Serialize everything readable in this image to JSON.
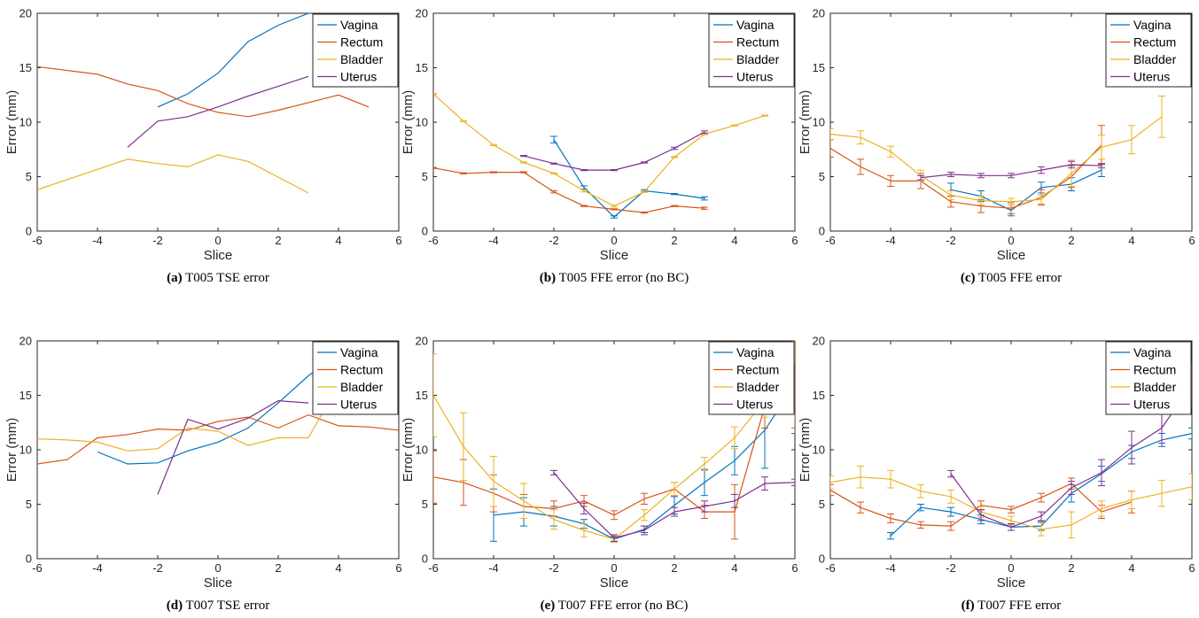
{
  "colors": {
    "Vagina": "#0072bd",
    "Rectum": "#d95319",
    "Bladder": "#edb120",
    "Uterus": "#7e2f8e"
  },
  "chart_data": [
    {
      "type": "line",
      "caption_label": "(a)",
      "caption_text": "T005 TSE error",
      "xlabel": "Slice",
      "ylabel": "Error (mm)",
      "xlim": [
        -6,
        6
      ],
      "ylim": [
        0,
        20
      ],
      "xticks": [
        -6,
        -4,
        -2,
        0,
        2,
        4,
        6
      ],
      "yticks": [
        0,
        5,
        10,
        15,
        20
      ],
      "legend_position": "top-right",
      "error_bars": false,
      "series": [
        {
          "name": "Vagina",
          "x": [
            -2,
            -1,
            0,
            1,
            2,
            3
          ],
          "y": [
            11.4,
            12.6,
            14.5,
            17.4,
            18.9,
            20.0
          ]
        },
        {
          "name": "Rectum",
          "x": [
            -6,
            -4,
            -3,
            -2,
            -1,
            0,
            1,
            2,
            3,
            4,
            5
          ],
          "y": [
            15.1,
            14.4,
            13.5,
            12.9,
            11.7,
            10.9,
            10.5,
            11.1,
            11.8,
            12.5,
            11.4
          ]
        },
        {
          "name": "Bladder",
          "x": [
            -6,
            -3,
            -2,
            -1,
            0,
            1,
            3
          ],
          "y": [
            3.8,
            6.6,
            6.2,
            5.9,
            7.0,
            6.4,
            3.5
          ]
        },
        {
          "name": "Uterus",
          "x": [
            -3,
            -2,
            -1,
            0,
            1,
            2,
            3
          ],
          "y": [
            7.7,
            10.1,
            10.5,
            11.4,
            12.4,
            13.3,
            14.2
          ]
        }
      ]
    },
    {
      "type": "line",
      "caption_label": "(b)",
      "caption_text": "T005 FFE error (no BC)",
      "xlabel": "Slice",
      "ylabel": "Error (mm)",
      "xlim": [
        -6,
        6
      ],
      "ylim": [
        0,
        20
      ],
      "xticks": [
        -6,
        -4,
        -2,
        0,
        2,
        4,
        6
      ],
      "yticks": [
        0,
        5,
        10,
        15,
        20
      ],
      "legend_position": "top-right",
      "error_bars": true,
      "series": [
        {
          "name": "Vagina",
          "x": [
            -2,
            -1,
            0,
            1,
            2,
            3
          ],
          "y": [
            8.4,
            4.0,
            1.3,
            3.7,
            3.4,
            3.0
          ],
          "err": [
            0.3,
            0.15,
            0.1,
            0.1,
            0.05,
            0.15
          ]
        },
        {
          "name": "Rectum",
          "x": [
            -6,
            -5,
            -4,
            -3,
            -2,
            -1,
            0,
            1,
            2,
            3
          ],
          "y": [
            5.8,
            5.3,
            5.4,
            5.4,
            3.6,
            2.3,
            2.0,
            1.7,
            2.3,
            2.1
          ],
          "err": [
            0.05,
            0.05,
            0.05,
            0.05,
            0.1,
            0.05,
            0.05,
            0.05,
            0.05,
            0.1
          ]
        },
        {
          "name": "Bladder",
          "x": [
            -6,
            -5,
            -4,
            -3,
            -2,
            -1,
            0,
            1,
            2,
            3,
            4,
            5
          ],
          "y": [
            12.6,
            10.1,
            7.9,
            6.3,
            5.3,
            3.7,
            2.3,
            3.6,
            6.8,
            8.9,
            9.7,
            10.6
          ],
          "err": [
            0.05,
            0.05,
            0.05,
            0.05,
            0.05,
            0.1,
            0.1,
            0.05,
            0.05,
            0.05,
            0.05,
            0.05
          ]
        },
        {
          "name": "Uterus",
          "x": [
            -3,
            -2,
            -1,
            0,
            1,
            2,
            3
          ],
          "y": [
            6.9,
            6.2,
            5.6,
            5.6,
            6.3,
            7.6,
            9.1
          ],
          "err": [
            0.05,
            0.05,
            0.05,
            0.05,
            0.05,
            0.1,
            0.1
          ]
        }
      ]
    },
    {
      "type": "line",
      "caption_label": "(c)",
      "caption_text": "T005 FFE error",
      "xlabel": "Slice",
      "ylabel": "Error (mm)",
      "xlim": [
        -6,
        6
      ],
      "ylim": [
        0,
        20
      ],
      "xticks": [
        -6,
        -4,
        -2,
        0,
        2,
        4,
        6
      ],
      "yticks": [
        0,
        5,
        10,
        15,
        20
      ],
      "legend_position": "top-right",
      "error_bars": true,
      "series": [
        {
          "name": "Vagina",
          "x": [
            -2,
            -1,
            0,
            1,
            2,
            3
          ],
          "y": [
            3.8,
            3.2,
            1.9,
            4.0,
            4.3,
            5.6
          ],
          "err": [
            0.6,
            0.5,
            0.5,
            0.5,
            0.6,
            0.6
          ]
        },
        {
          "name": "Rectum",
          "x": [
            -6,
            -5,
            -4,
            -3,
            -2,
            -1,
            0,
            1,
            2,
            3
          ],
          "y": [
            7.6,
            5.9,
            4.6,
            4.6,
            2.7,
            2.3,
            2.1,
            3.1,
            5.0,
            7.9
          ],
          "err": [
            0.8,
            0.7,
            0.5,
            0.7,
            0.5,
            0.6,
            0.5,
            0.7,
            1.0,
            1.8
          ]
        },
        {
          "name": "Bladder",
          "x": [
            -6,
            -5,
            -4,
            -3,
            -2,
            -1,
            0,
            1,
            2,
            3,
            4,
            5
          ],
          "y": [
            8.9,
            8.6,
            7.3,
            5.1,
            3.3,
            2.8,
            2.7,
            2.9,
            5.3,
            7.7,
            8.4,
            10.5
          ],
          "err": [
            0.5,
            0.6,
            0.5,
            0.5,
            0.4,
            0.4,
            0.3,
            0.4,
            1.2,
            1.1,
            1.3,
            1.9
          ]
        },
        {
          "name": "Uterus",
          "x": [
            -3,
            -2,
            -1,
            0,
            1,
            2,
            3
          ],
          "y": [
            4.9,
            5.2,
            5.1,
            5.1,
            5.6,
            6.1,
            6.0
          ],
          "err": [
            0.2,
            0.2,
            0.2,
            0.2,
            0.3,
            0.3,
            0.2
          ]
        }
      ]
    },
    {
      "type": "line",
      "caption_label": "(d)",
      "caption_text": "T007 TSE error",
      "xlabel": "Slice",
      "ylabel": "Error (mm)",
      "xlim": [
        -6,
        6
      ],
      "ylim": [
        0,
        20
      ],
      "xticks": [
        -6,
        -4,
        -2,
        0,
        2,
        4,
        6
      ],
      "yticks": [
        0,
        5,
        10,
        15,
        20
      ],
      "legend_position": "top-right",
      "error_bars": false,
      "series": [
        {
          "name": "Vagina",
          "x": [
            -4,
            -3,
            -2,
            -1,
            0,
            1,
            2,
            3,
            4,
            5
          ],
          "y": [
            9.8,
            8.7,
            8.8,
            9.9,
            10.7,
            12.0,
            14.3,
            16.8,
            18.8,
            20.0
          ]
        },
        {
          "name": "Rectum",
          "x": [
            -6,
            -5,
            -4,
            -3,
            -2,
            -1,
            0,
            1,
            2,
            3,
            4,
            5,
            6
          ],
          "y": [
            8.7,
            9.1,
            11.1,
            11.4,
            11.9,
            11.8,
            12.6,
            13.0,
            12.0,
            13.2,
            12.2,
            12.1,
            11.8
          ]
        },
        {
          "name": "Bladder",
          "x": [
            -6,
            -5,
            -4,
            -3,
            -2,
            -1,
            0,
            1,
            2,
            3,
            4
          ],
          "y": [
            11.0,
            10.9,
            10.7,
            9.9,
            10.1,
            12.0,
            11.7,
            10.4,
            11.1,
            11.1,
            16.0
          ]
        },
        {
          "name": "Uterus",
          "x": [
            -2,
            -1,
            0,
            1,
            2,
            3
          ],
          "y": [
            5.9,
            12.8,
            11.9,
            12.9,
            14.5,
            14.3
          ]
        }
      ]
    },
    {
      "type": "line",
      "caption_label": "(e)",
      "caption_text": "T007 FFE error (no BC)",
      "xlabel": "Slice",
      "ylabel": "Error (mm)",
      "xlim": [
        -6,
        6
      ],
      "ylim": [
        0,
        20
      ],
      "xticks": [
        -6,
        -4,
        -2,
        0,
        2,
        4,
        6
      ],
      "yticks": [
        0,
        5,
        10,
        15,
        20
      ],
      "legend_position": "top-right",
      "error_bars": true,
      "series": [
        {
          "name": "Vagina",
          "x": [
            -4,
            -3,
            -2,
            -1,
            0,
            1,
            2,
            3,
            4,
            5,
            6
          ],
          "y": [
            4.0,
            4.3,
            3.9,
            3.2,
            1.8,
            2.7,
            4.9,
            7.0,
            9.0,
            11.8,
            16.0
          ],
          "err": [
            2.4,
            1.3,
            0.9,
            0.4,
            0.2,
            0.3,
            0.8,
            1.2,
            1.3,
            3.5,
            4.5
          ]
        },
        {
          "name": "Rectum",
          "x": [
            -6,
            -5,
            -4,
            -3,
            -2,
            -1,
            0,
            1,
            2,
            3,
            4,
            5,
            6
          ],
          "y": [
            7.5,
            7.0,
            6.0,
            4.8,
            4.6,
            5.3,
            4.0,
            5.5,
            6.4,
            4.3,
            4.3,
            14.0,
            16.0
          ],
          "err": [
            2.4,
            2.1,
            1.7,
            1.1,
            0.7,
            0.5,
            0.4,
            0.5,
            0.6,
            0.6,
            2.5,
            2.0,
            4.0
          ]
        },
        {
          "name": "Bladder",
          "x": [
            -6,
            -5,
            -4,
            -3,
            -2,
            -1,
            0,
            1,
            2,
            3,
            4,
            5,
            6
          ],
          "y": [
            15.0,
            10.3,
            7.1,
            5.3,
            3.6,
            2.6,
            1.8,
            4.0,
            6.4,
            8.7,
            11.1,
            14.5,
            20.0
          ],
          "err": [
            3.8,
            3.1,
            2.3,
            1.6,
            0.9,
            0.6,
            0.3,
            0.5,
            0.6,
            0.6,
            1.0,
            1.5,
            2.0
          ]
        },
        {
          "name": "Uterus",
          "x": [
            -2,
            -1,
            0,
            1,
            2,
            3,
            4,
            5,
            6
          ],
          "y": [
            7.9,
            4.6,
            1.9,
            2.6,
            4.3,
            4.8,
            5.3,
            6.9,
            7.0
          ],
          "err": [
            0.2,
            0.5,
            0.3,
            0.4,
            0.4,
            0.5,
            0.6,
            0.6,
            0.3
          ]
        }
      ]
    },
    {
      "type": "line",
      "caption_label": "(f)",
      "caption_text": "T007 FFE error",
      "xlabel": "Slice",
      "ylabel": "Error (mm)",
      "xlim": [
        -6,
        6
      ],
      "ylim": [
        0,
        20
      ],
      "xticks": [
        -6,
        -4,
        -2,
        0,
        2,
        4,
        6
      ],
      "yticks": [
        0,
        5,
        10,
        15,
        20
      ],
      "legend_position": "top-right",
      "error_bars": true,
      "series": [
        {
          "name": "Vagina",
          "x": [
            -4,
            -3,
            -2,
            -1,
            0,
            1,
            2,
            3,
            4,
            5,
            6
          ],
          "y": [
            2.1,
            4.7,
            4.3,
            3.6,
            2.9,
            3.0,
            6.0,
            7.8,
            9.8,
            10.9,
            11.5
          ],
          "err": [
            0.3,
            0.3,
            0.4,
            0.4,
            0.3,
            0.4,
            0.8,
            0.7,
            0.6,
            0.6,
            0.5
          ]
        },
        {
          "name": "Rectum",
          "x": [
            -6,
            -5,
            -4,
            -3,
            -2,
            -1,
            0,
            1,
            2,
            3,
            4
          ],
          "y": [
            6.3,
            4.7,
            3.7,
            3.1,
            3.0,
            4.9,
            4.5,
            5.6,
            6.9,
            4.3,
            5.2
          ],
          "err": [
            0.5,
            0.5,
            0.4,
            0.3,
            0.4,
            0.4,
            0.3,
            0.4,
            0.5,
            0.6,
            1.0
          ]
        },
        {
          "name": "Bladder",
          "x": [
            -6,
            -5,
            -4,
            -3,
            -2,
            -1,
            0,
            1,
            2,
            3,
            4,
            5,
            6
          ],
          "y": [
            7.0,
            7.5,
            7.3,
            6.2,
            5.7,
            4.3,
            3.5,
            2.7,
            3.1,
            4.6,
            5.4,
            6.0,
            6.6
          ],
          "err": [
            0.6,
            1.0,
            0.8,
            0.6,
            0.6,
            0.5,
            0.4,
            0.6,
            1.2,
            0.7,
            0.8,
            1.2,
            1.2
          ]
        },
        {
          "name": "Uterus",
          "x": [
            -2,
            -1,
            0,
            1,
            2,
            3,
            4,
            5,
            6
          ],
          "y": [
            7.8,
            4.0,
            2.9,
            3.9,
            6.5,
            7.9,
            10.2,
            12.0,
            16.0
          ],
          "err": [
            0.3,
            0.5,
            0.3,
            0.4,
            0.6,
            1.2,
            1.5,
            1.4,
            2.0
          ]
        }
      ]
    }
  ]
}
